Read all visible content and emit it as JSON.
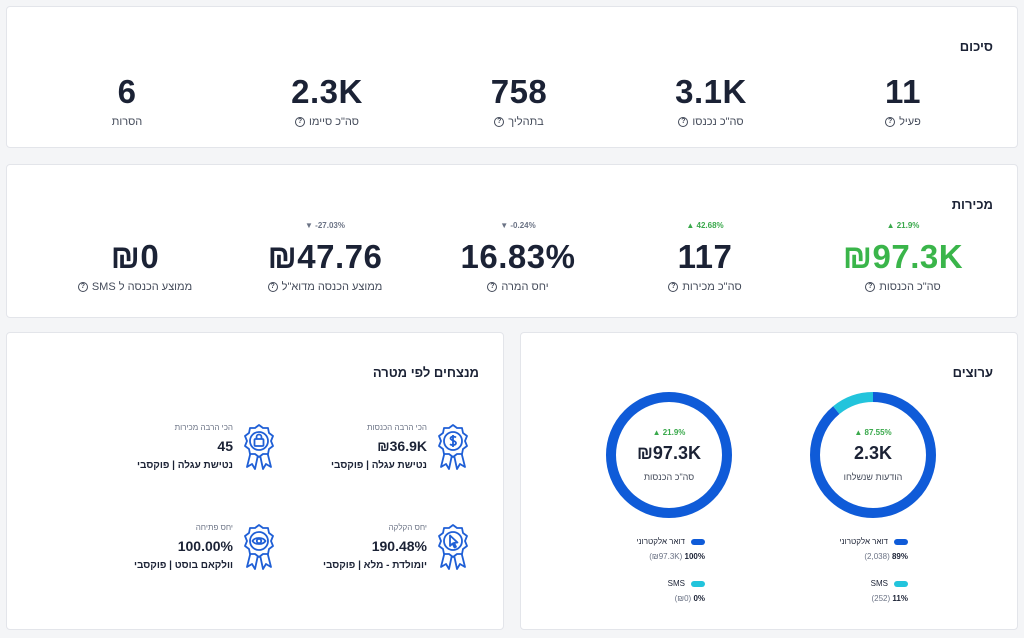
{
  "colors": {
    "positive": "#3ab54a",
    "negative": "#6b7385",
    "email": "#0f5bd8",
    "sms": "#22c4dc",
    "text": "#1b2235"
  },
  "summary": {
    "title": "סיכום",
    "metrics": [
      {
        "value": "11",
        "label": "פעיל"
      },
      {
        "value": "3.1K",
        "label": "סה\"כ נכנסו"
      },
      {
        "value": "758",
        "label": "בתהליך"
      },
      {
        "value": "2.3K",
        "label": "סה\"כ סיימו"
      },
      {
        "value": "6",
        "label": "הסרות"
      }
    ]
  },
  "sales": {
    "title": "מכירות",
    "metrics": [
      {
        "change": "21.9%",
        "direction": "up",
        "value": "₪97.3K",
        "label": "סה\"כ הכנסות"
      },
      {
        "change": "42.68%",
        "direction": "up",
        "value": "117",
        "label": "סה\"כ מכירות"
      },
      {
        "change": "-0.24%",
        "direction": "down",
        "value": "16.83%",
        "label": "יחס המרה"
      },
      {
        "change": "-27.03%",
        "direction": "down",
        "value": "₪47.76",
        "label": "ממוצע הכנסה מדוא\"ל"
      },
      {
        "change": "",
        "direction": "",
        "value": "₪0",
        "label": "ממוצע הכנסה ל SMS"
      }
    ]
  },
  "winners": {
    "title": "מנצחים לפי מטרה",
    "items": [
      {
        "category": "הכי הרבה הכנסות",
        "value": "₪36.9K",
        "name": "נטישת עגלה | פוקסבי",
        "icon": "dollar-ribbon-icon"
      },
      {
        "category": "הכי הרבה מכירות",
        "value": "45",
        "name": "נטישת עגלה | פוקסבי",
        "icon": "bag-ribbon-icon"
      },
      {
        "category": "יחס הקלקה",
        "value": "190.48%",
        "name": "יומולדת - מלא | פוקסבי",
        "icon": "cursor-ribbon-icon"
      },
      {
        "category": "יחס פתיחה",
        "value": "100.00%",
        "name": "וולקאם בוסט | פוקסבי",
        "icon": "eye-ribbon-icon"
      }
    ]
  },
  "channels": {
    "title": "ערוצים",
    "donuts": [
      {
        "change": "87.55%",
        "value": "2.3K",
        "label": "הודעות שנשלחו",
        "fractions": {
          "email": 0.89,
          "sms": 0.11
        },
        "legend": [
          {
            "name": "דואר אלקטרוני",
            "percent": "89%",
            "detail": "(2,038)",
            "color_key": "email"
          },
          {
            "name": "SMS",
            "percent": "11%",
            "detail": "(252)",
            "color_key": "sms"
          }
        ]
      },
      {
        "change": "21.9%",
        "value": "₪97.3K",
        "label": "סה\"כ הכנסות",
        "fractions": {
          "email": 1.0,
          "sms": 0.0
        },
        "legend": [
          {
            "name": "דואר אלקטרוני",
            "percent": "100%",
            "detail": "(₪97.3K)",
            "color_key": "email"
          },
          {
            "name": "SMS",
            "percent": "0%",
            "detail": "(₪0)",
            "color_key": "sms"
          }
        ]
      }
    ]
  }
}
